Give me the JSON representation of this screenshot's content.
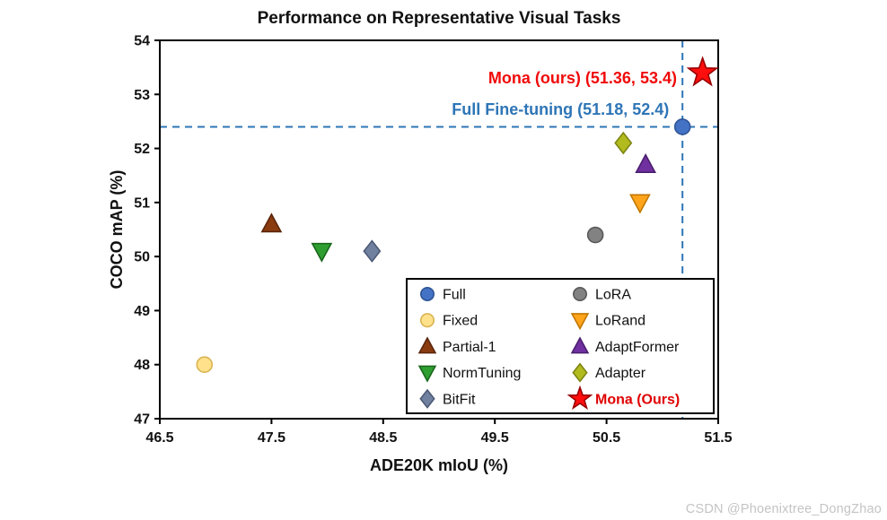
{
  "watermark": "CSDN @Phoenixtree_DongZhao",
  "chart_data": {
    "type": "scatter",
    "title": "Performance on Representative Visual Tasks",
    "xlabel": "ADE20K mIoU (%)",
    "ylabel": "COCO mAP (%)",
    "xlim": [
      46.5,
      51.5
    ],
    "ylim": [
      47,
      54
    ],
    "grid": false,
    "legend_position": "inside-lower-right",
    "xticks": [
      {
        "v": 46.5,
        "label": "46.5"
      },
      {
        "v": 47.5,
        "label": "47.5"
      },
      {
        "v": 48.5,
        "label": "48.5"
      },
      {
        "v": 49.5,
        "label": "49.5"
      },
      {
        "v": 50.5,
        "label": "50.5"
      },
      {
        "v": 51.5,
        "label": "51.5"
      }
    ],
    "yticks": [
      {
        "v": 47,
        "label": "47"
      },
      {
        "v": 48,
        "label": "48"
      },
      {
        "v": 49,
        "label": "49"
      },
      {
        "v": 50,
        "label": "50"
      },
      {
        "v": 51,
        "label": "51"
      },
      {
        "v": 52,
        "label": "52"
      },
      {
        "v": 53,
        "label": "53"
      },
      {
        "v": 54,
        "label": "54"
      }
    ],
    "series": [
      {
        "name": "Full",
        "marker": "circle",
        "fill": "#4472c4",
        "edge": "#2f5597",
        "x": 51.18,
        "y": 52.4
      },
      {
        "name": "Fixed",
        "marker": "circle",
        "fill": "#ffe18c",
        "edge": "#d9b452",
        "x": 46.9,
        "y": 48.0
      },
      {
        "name": "Partial-1",
        "marker": "triangle-up",
        "fill": "#8a3b10",
        "edge": "#5a2509",
        "x": 47.5,
        "y": 50.6
      },
      {
        "name": "NormTuning",
        "marker": "triangle-down",
        "fill": "#2e9e30",
        "edge": "#1b661c",
        "x": 47.95,
        "y": 50.1
      },
      {
        "name": "BitFit",
        "marker": "diamond",
        "fill": "#70809f",
        "edge": "#4c5a75",
        "x": 48.4,
        "y": 50.1
      },
      {
        "name": "LoRA",
        "marker": "circle",
        "fill": "#828282",
        "edge": "#595959",
        "x": 50.4,
        "y": 50.4
      },
      {
        "name": "LoRand",
        "marker": "triangle-down",
        "fill": "#ffa41b",
        "edge": "#c07700",
        "x": 50.8,
        "y": 51.0
      },
      {
        "name": "AdaptFormer",
        "marker": "triangle-up",
        "fill": "#7030a0",
        "edge": "#4a1e6e",
        "x": 50.85,
        "y": 51.7
      },
      {
        "name": "Adapter",
        "marker": "diamond",
        "fill": "#b2bb1e",
        "edge": "#7e8512",
        "x": 50.65,
        "y": 52.1
      },
      {
        "name": "Mona (Ours)",
        "marker": "star",
        "fill": "#ff0e0e",
        "edge": "#990000",
        "x": 51.36,
        "y": 53.4,
        "legend_label_color": "#e00000",
        "legend_bold": true
      }
    ],
    "reference_lines": [
      {
        "axis": "y",
        "value": 52.4,
        "color": "#2e75b6",
        "style": "dashed"
      },
      {
        "axis": "x",
        "value": 51.18,
        "color": "#2e75b6",
        "style": "dashed"
      }
    ],
    "annotations": [
      {
        "text": "Mona (ours) (51.36, 53.4)",
        "color": "#f00a0a",
        "x": 51.13,
        "y": 53.2,
        "anchor": "end"
      },
      {
        "text": "Full Fine-tuning (51.18, 52.4)",
        "color": "#2e75b6",
        "x": 51.06,
        "y": 52.62,
        "anchor": "end"
      }
    ]
  }
}
